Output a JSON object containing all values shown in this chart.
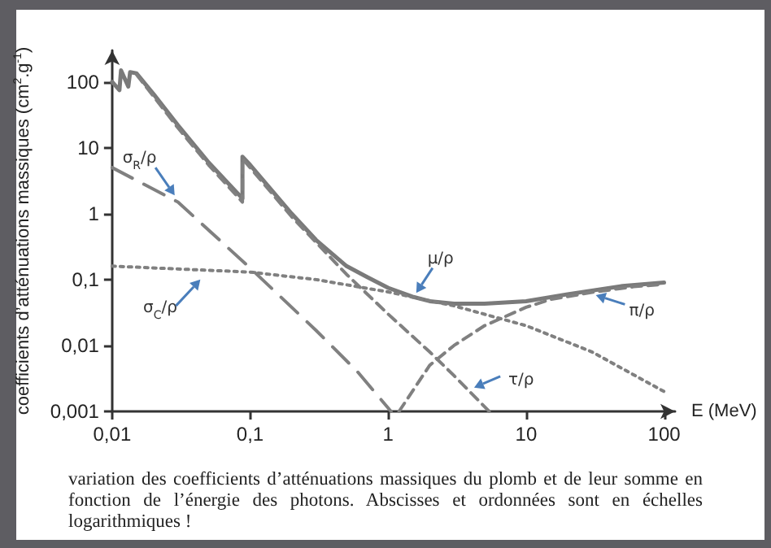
{
  "chart_data": {
    "type": "line",
    "xlabel": "E (MeV)",
    "ylabel": "coefficients d’atténuations massiques (cm$^{2}$.g$^{-1}$)",
    "log": "xy",
    "grid": false,
    "marker": "none",
    "xlim": [
      0.01,
      120
    ],
    "ylim": [
      0.001,
      300
    ],
    "xticks": [
      {
        "value": 0.01,
        "label": "0,01"
      },
      {
        "value": 0.1,
        "label": "0,1"
      },
      1,
      10,
      100
    ],
    "yticks": [
      {
        "value": 0.001,
        "label": "0,001"
      },
      {
        "value": 0.01,
        "label": "0,01"
      },
      {
        "value": 0.1,
        "label": "0,1"
      },
      1,
      10,
      100
    ],
    "series": [
      {
        "name": "μ/ρ",
        "color": "#7a7a7a",
        "line_style": "solid",
        "x": [
          0.01,
          0.0113,
          0.0116,
          0.0131,
          0.0135,
          0.015,
          0.02,
          0.03,
          0.05,
          0.088,
          0.088,
          0.1,
          0.2,
          0.3,
          0.5,
          0.7,
          1,
          1.5,
          2,
          3,
          5,
          10,
          20,
          50,
          100
        ],
        "values": [
          100,
          75,
          150,
          85,
          140,
          135,
          65,
          22,
          6,
          1.7,
          7.3,
          5.5,
          1,
          0.4,
          0.16,
          0.11,
          0.075,
          0.055,
          0.047,
          0.043,
          0.043,
          0.047,
          0.06,
          0.08,
          0.09
        ]
      },
      {
        "name": "τ/ρ",
        "color": "#808080",
        "line_style": "dashed",
        "x": [
          0.015,
          0.02,
          0.03,
          0.05,
          0.088,
          0.088,
          0.1,
          0.2,
          0.5,
          1,
          2,
          3,
          5.4
        ],
        "values": [
          130,
          60,
          20,
          5.5,
          1.5,
          6.8,
          5,
          0.9,
          0.12,
          0.03,
          0.008,
          0.0035,
          0.001
        ]
      },
      {
        "name": "σ$_{R}$/ρ",
        "color": "#808080",
        "line_style": "longdash",
        "x": [
          0.01,
          0.03,
          0.1,
          0.3,
          0.6,
          1.05
        ],
        "values": [
          5,
          1.5,
          0.15,
          0.017,
          0.004,
          0.001
        ]
      },
      {
        "name": "σ$_{C}$/ρ",
        "color": "#808080",
        "line_style": "dotted",
        "x": [
          0.01,
          0.1,
          0.3,
          1,
          3,
          10,
          30,
          100
        ],
        "values": [
          0.16,
          0.13,
          0.1,
          0.065,
          0.04,
          0.02,
          0.008,
          0.002
        ]
      },
      {
        "name": "π/ρ",
        "color": "#808080",
        "line_style": "dashed",
        "x": [
          1.2,
          2,
          3,
          5,
          10,
          15,
          30,
          60,
          100
        ],
        "values": [
          0.001,
          0.005,
          0.01,
          0.02,
          0.038,
          0.05,
          0.064,
          0.078,
          0.085
        ]
      }
    ],
    "annotations": [
      "variation des coefficients d’atténuations massiques du plomb et de leur somme en fonction de l’énergie des photons. Abscisses et ordonnées sont en échelles logarithmiques !"
    ]
  }
}
